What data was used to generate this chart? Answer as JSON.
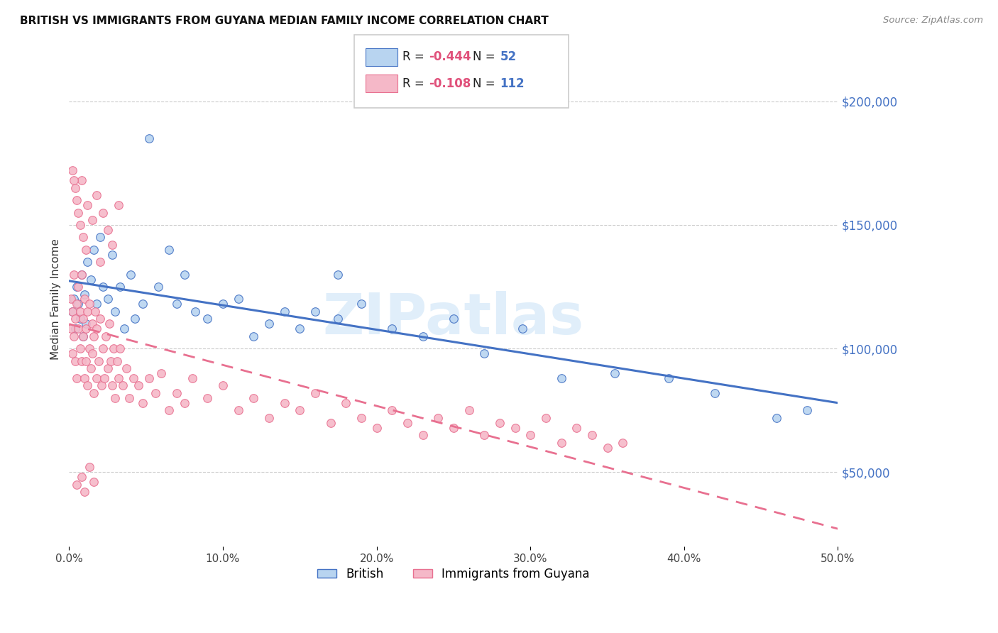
{
  "title": "BRITISH VS IMMIGRANTS FROM GUYANA MEDIAN FAMILY INCOME CORRELATION CHART",
  "source": "Source: ZipAtlas.com",
  "ylabel": "Median Family Income",
  "x_min": 0.0,
  "x_max": 0.5,
  "y_min": 20000,
  "y_max": 220000,
  "y_ticks": [
    50000,
    100000,
    150000,
    200000
  ],
  "x_ticks": [
    0.0,
    0.1,
    0.2,
    0.3,
    0.4,
    0.5
  ],
  "x_tick_labels": [
    "0.0%",
    "10.0%",
    "20.0%",
    "30.0%",
    "40.0%",
    "50.0%"
  ],
  "british_R": -0.444,
  "british_N": 52,
  "guyana_R": -0.108,
  "guyana_N": 112,
  "british_color": "#b8d4f0",
  "guyana_color": "#f5b8c8",
  "british_edge_color": "#4472c4",
  "guyana_edge_color": "#e87090",
  "british_line_color": "#4472c4",
  "guyana_line_color": "#e87090",
  "watermark": "ZIPatlas",
  "legend_label_british": "British",
  "legend_label_guyana": "Immigrants from Guyana",
  "british_scatter_x": [
    0.002,
    0.003,
    0.004,
    0.005,
    0.006,
    0.007,
    0.008,
    0.009,
    0.01,
    0.011,
    0.012,
    0.014,
    0.016,
    0.018,
    0.02,
    0.022,
    0.025,
    0.028,
    0.03,
    0.033,
    0.036,
    0.04,
    0.043,
    0.048,
    0.052,
    0.058,
    0.065,
    0.07,
    0.075,
    0.082,
    0.09,
    0.1,
    0.11,
    0.12,
    0.13,
    0.14,
    0.15,
    0.16,
    0.175,
    0.19,
    0.21,
    0.23,
    0.25,
    0.27,
    0.295,
    0.175,
    0.32,
    0.355,
    0.39,
    0.42,
    0.46,
    0.48
  ],
  "british_scatter_y": [
    115000,
    120000,
    108000,
    125000,
    118000,
    112000,
    130000,
    105000,
    122000,
    110000,
    135000,
    128000,
    140000,
    118000,
    145000,
    125000,
    120000,
    138000,
    115000,
    125000,
    108000,
    130000,
    112000,
    118000,
    185000,
    125000,
    140000,
    118000,
    130000,
    115000,
    112000,
    118000,
    120000,
    105000,
    110000,
    115000,
    108000,
    115000,
    112000,
    118000,
    108000,
    105000,
    112000,
    98000,
    108000,
    130000,
    88000,
    90000,
    88000,
    82000,
    72000,
    75000
  ],
  "guyana_scatter_x": [
    0.001,
    0.001,
    0.002,
    0.002,
    0.003,
    0.003,
    0.004,
    0.004,
    0.005,
    0.005,
    0.006,
    0.006,
    0.007,
    0.007,
    0.008,
    0.008,
    0.009,
    0.009,
    0.01,
    0.01,
    0.011,
    0.011,
    0.012,
    0.012,
    0.013,
    0.013,
    0.014,
    0.015,
    0.015,
    0.016,
    0.016,
    0.017,
    0.018,
    0.018,
    0.019,
    0.02,
    0.021,
    0.022,
    0.023,
    0.024,
    0.025,
    0.026,
    0.027,
    0.028,
    0.029,
    0.03,
    0.031,
    0.032,
    0.033,
    0.035,
    0.037,
    0.039,
    0.042,
    0.045,
    0.048,
    0.052,
    0.056,
    0.06,
    0.065,
    0.07,
    0.075,
    0.08,
    0.09,
    0.1,
    0.11,
    0.12,
    0.13,
    0.14,
    0.15,
    0.16,
    0.17,
    0.18,
    0.19,
    0.2,
    0.21,
    0.22,
    0.23,
    0.24,
    0.25,
    0.26,
    0.27,
    0.28,
    0.29,
    0.3,
    0.31,
    0.32,
    0.33,
    0.34,
    0.35,
    0.36,
    0.005,
    0.008,
    0.012,
    0.015,
    0.018,
    0.022,
    0.025,
    0.028,
    0.032,
    0.005,
    0.008,
    0.01,
    0.013,
    0.016,
    0.003,
    0.006,
    0.009,
    0.02,
    0.002,
    0.004,
    0.007,
    0.011
  ],
  "guyana_scatter_y": [
    108000,
    120000,
    115000,
    98000,
    130000,
    105000,
    112000,
    95000,
    118000,
    88000,
    108000,
    125000,
    100000,
    115000,
    95000,
    130000,
    105000,
    112000,
    88000,
    120000,
    95000,
    108000,
    85000,
    115000,
    100000,
    118000,
    92000,
    110000,
    98000,
    105000,
    82000,
    115000,
    88000,
    108000,
    95000,
    112000,
    85000,
    100000,
    88000,
    105000,
    92000,
    110000,
    95000,
    85000,
    100000,
    80000,
    95000,
    88000,
    100000,
    85000,
    92000,
    80000,
    88000,
    85000,
    78000,
    88000,
    82000,
    90000,
    75000,
    82000,
    78000,
    88000,
    80000,
    85000,
    75000,
    80000,
    72000,
    78000,
    75000,
    82000,
    70000,
    78000,
    72000,
    68000,
    75000,
    70000,
    65000,
    72000,
    68000,
    75000,
    65000,
    70000,
    68000,
    65000,
    72000,
    62000,
    68000,
    65000,
    60000,
    62000,
    160000,
    168000,
    158000,
    152000,
    162000,
    155000,
    148000,
    142000,
    158000,
    45000,
    48000,
    42000,
    52000,
    46000,
    168000,
    155000,
    145000,
    135000,
    172000,
    165000,
    150000,
    140000
  ]
}
